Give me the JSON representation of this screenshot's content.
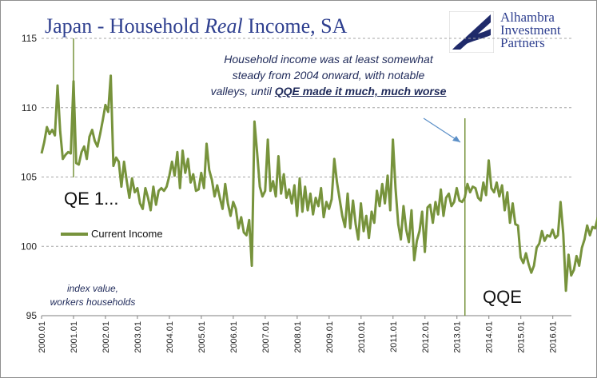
{
  "colors": {
    "line": "#77933c",
    "title": "#2e3f8f",
    "grid": "#a6a6a6",
    "arrow": "#5b8fc7"
  },
  "title": {
    "prefix": "Japan - Household ",
    "italic": "Real",
    "suffix": " Income, SA"
  },
  "logo": {
    "line1": "Alhambra",
    "line2": "Investment",
    "line3": "Partners",
    "icon": "alhambra-logo-icon"
  },
  "annotation": {
    "line1": "Household income was at least somewhat",
    "line2": "steady from 2004 onward, with notable",
    "line3_prefix": "valleys, until ",
    "line3_emphasis": "QQE made it much, much worse"
  },
  "labels": {
    "qe1": "QE 1...",
    "qqe": "QQE"
  },
  "legend": {
    "series_name": "Current Income"
  },
  "footnote": {
    "line1": "index value,",
    "line2": "workers households"
  },
  "chart_data": {
    "type": "line",
    "title": "Japan - Household Real Income, SA",
    "ylabel": "index value, workers households",
    "ylim": [
      95,
      115
    ],
    "y_ticks": [
      95,
      100,
      105,
      110,
      115
    ],
    "x_ticks": [
      "2000.01",
      "2001.01",
      "2002.01",
      "2003.01",
      "2004.01",
      "2005.01",
      "2006.01",
      "2007.01",
      "2008.01",
      "2009.01",
      "2010.01",
      "2011.01",
      "2012.01",
      "2013.01",
      "2014.01",
      "2015.01",
      "2016.01"
    ],
    "x_range": [
      2000.0,
      2016.583
    ],
    "grid": "horizontal dashed",
    "legend_position": "left-middle",
    "vertical_markers": [
      {
        "x": 2001.0,
        "label": "QE 1..."
      },
      {
        "x": 2013.25,
        "label": "QQE"
      }
    ],
    "series": [
      {
        "name": "Current Income",
        "x_start": 2000.0,
        "step": 0.0833,
        "values": [
          106.7,
          107.5,
          108.6,
          108.1,
          108.4,
          108.0,
          111.6,
          108.3,
          106.3,
          106.6,
          106.8,
          106.7,
          111.9,
          106.0,
          105.9,
          106.8,
          107.2,
          106.3,
          107.9,
          108.4,
          107.6,
          107.2,
          108.1,
          109.1,
          110.2,
          109.7,
          112.3,
          105.8,
          106.4,
          106.1,
          104.3,
          106.1,
          104.7,
          103.5,
          104.9,
          103.9,
          104.2,
          103.1,
          102.7,
          104.2,
          103.5,
          102.6,
          104.3,
          103.0,
          104.0,
          104.2,
          104.0,
          104.3,
          105.1,
          106.1,
          105.1,
          106.8,
          104.2,
          106.9,
          105.3,
          106.3,
          104.6,
          105.2,
          104.0,
          104.1,
          105.3,
          104.2,
          107.4,
          105.5,
          104.8,
          103.6,
          104.4,
          103.5,
          102.7,
          104.5,
          103.1,
          102.2,
          103.2,
          102.7,
          101.3,
          102.1,
          101.0,
          100.8,
          101.9,
          98.6,
          109.0,
          106.7,
          104.3,
          103.6,
          104.0,
          107.7,
          104.0,
          104.7,
          103.6,
          106.5,
          103.8,
          105.2,
          103.5,
          104.1,
          103.1,
          104.4,
          102.2,
          104.9,
          102.5,
          104.3,
          102.6,
          103.8,
          102.3,
          103.5,
          102.9,
          104.2,
          102.1,
          103.2,
          102.7,
          103.4,
          106.3,
          104.6,
          103.4,
          102.2,
          101.4,
          103.8,
          101.3,
          103.3,
          101.6,
          100.5,
          103.1,
          101.1,
          102.2,
          100.6,
          102.5,
          101.7,
          104.0,
          102.9,
          104.5,
          103.1,
          105.1,
          102.6,
          107.7,
          104.2,
          101.6,
          100.5,
          102.9,
          101.2,
          100.3,
          102.6,
          99.0,
          100.4,
          101.1,
          102.5,
          99.6,
          102.8,
          103.0,
          101.7,
          103.2,
          102.3,
          104.1,
          102.2,
          103.5,
          103.8,
          102.9,
          103.2,
          104.2,
          103.3,
          103.2,
          103.5,
          104.5,
          103.9,
          104.3,
          104.2,
          103.5,
          103.3,
          104.6,
          103.7,
          106.2,
          104.2,
          103.9,
          104.6,
          103.6,
          104.4,
          102.6,
          103.9,
          101.7,
          103.1,
          101.6,
          101.5,
          99.2,
          98.8,
          99.5,
          98.7,
          98.1,
          98.6,
          99.9,
          100.2,
          101.1,
          100.4,
          100.8,
          100.7,
          101.2,
          100.6,
          100.8,
          103.2,
          100.9,
          96.8,
          99.4,
          97.9,
          98.3,
          99.3,
          98.6,
          99.9,
          100.5,
          101.5,
          100.8,
          101.4,
          101.3,
          102.1
        ]
      }
    ]
  }
}
